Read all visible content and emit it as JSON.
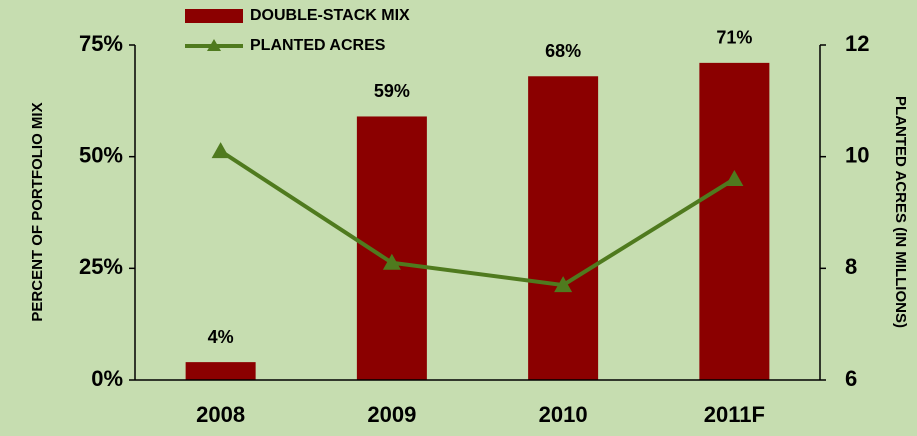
{
  "chart_data": {
    "type": "bar",
    "categories": [
      "2008",
      "2009",
      "2010",
      "2011F"
    ],
    "series": [
      {
        "name": "DOUBLE-STACK MIX",
        "type": "bar",
        "color": "#8b0000",
        "values": [
          4,
          59,
          68,
          71
        ],
        "value_labels": [
          "4%",
          "59%",
          "68%",
          "71%"
        ]
      },
      {
        "name": "PLANTED ACRES",
        "type": "line",
        "axis": "y2",
        "color": "#4f7a1e",
        "values": [
          10.1,
          8.1,
          7.7,
          9.6
        ]
      }
    ],
    "ylabel": "PERCENT OF PORTFOLIO MIX",
    "y2label": "PLANTED ACRES  (IN MILLIONS)",
    "ylim": [
      0,
      75
    ],
    "yticks": [
      {
        "value": 0,
        "label": "0%"
      },
      {
        "value": 25,
        "label": "25%"
      },
      {
        "value": 50,
        "label": "50%"
      },
      {
        "value": 75,
        "label": "75%"
      }
    ],
    "y2lim": [
      6,
      12
    ],
    "y2ticks": [
      6,
      8,
      10,
      12
    ],
    "legend": "top-left"
  }
}
